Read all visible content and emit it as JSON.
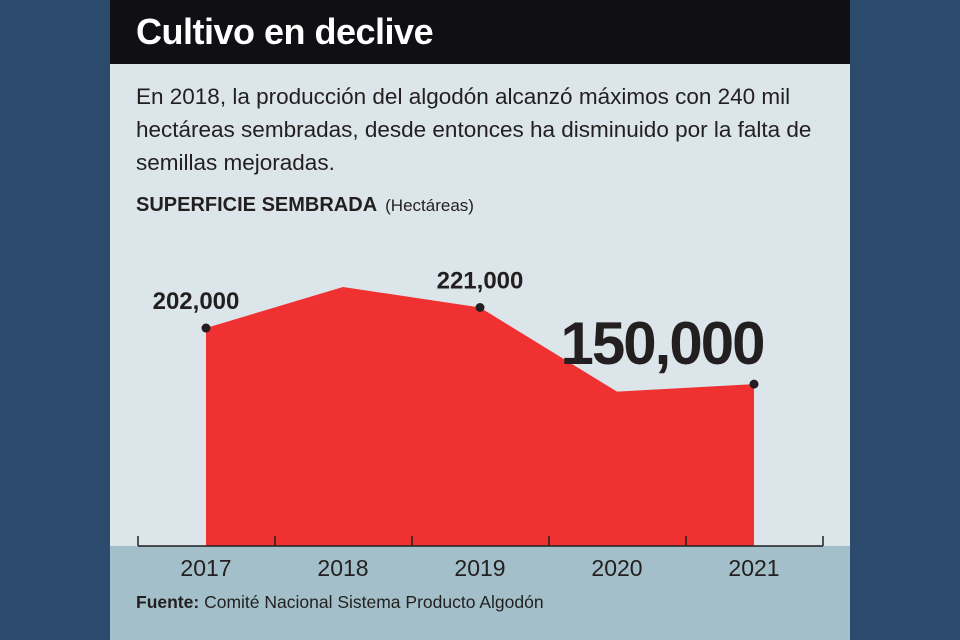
{
  "header": {
    "title": "Cultivo en declive",
    "subtitle": "En 2018, la producción del algodón alcanzó máximos con 240 mil hectáreas sembradas, desde entonces ha disminuido por la falta de semillas mejoradas."
  },
  "section": {
    "label": "SUPERFICIE SEMBRADA",
    "unit": "(Hectáreas)"
  },
  "footer": {
    "source_label": "Fuente:",
    "source_text": "Comité Nacional Sistema Producto Algodón"
  },
  "colors": {
    "area": "#f03131",
    "background": "#dbe5ea",
    "title_bar": "#0f0f14",
    "axis_band": "#a3bfc9",
    "text": "#231f20",
    "frame": "#2c4a6b"
  },
  "chart_data": {
    "type": "area",
    "title": "SUPERFICIE SEMBRADA",
    "ylabel": "Hectáreas",
    "xlabel": "",
    "categories": [
      "2017",
      "2018",
      "2019",
      "2020",
      "2021"
    ],
    "values": [
      202000,
      240000,
      221000,
      143000,
      150000
    ],
    "ylim": [
      0,
      240000
    ],
    "grid": false,
    "data_labels": [
      {
        "category": "2017",
        "text": "202,000"
      },
      {
        "category": "2019",
        "text": "221,000"
      },
      {
        "category": "2021",
        "text": "150,000",
        "emphasis": true
      }
    ]
  }
}
